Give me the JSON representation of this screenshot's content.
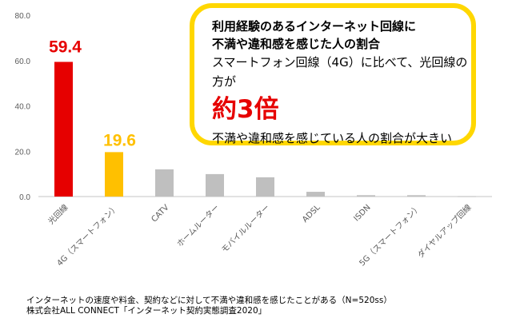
{
  "chart_data": {
    "type": "bar",
    "categories": [
      "光回線",
      "4G（スマートフォン）",
      "CATV",
      "ホームルーター",
      "モバイルルーター",
      "ADSL",
      "ISDN",
      "5G（スマートフォン）",
      "ダイヤルアップ回線"
    ],
    "values": [
      59.4,
      19.6,
      12.0,
      9.9,
      8.5,
      2.1,
      0.6,
      0.6,
      0.1
    ],
    "data_labels": [
      "59.4",
      "19.6",
      "",
      "",
      "",
      "",
      "",
      "",
      ""
    ],
    "colors": [
      "#e60000",
      "#ffc000",
      "#bfbfbf",
      "#bfbfbf",
      "#bfbfbf",
      "#bfbfbf",
      "#bfbfbf",
      "#bfbfbf",
      "#bfbfbf"
    ],
    "yticks": [
      "0.0",
      "20.0",
      "40.0",
      "60.0",
      "80.0"
    ],
    "ylim": [
      0,
      80
    ],
    "grid": false,
    "title": "",
    "xlabel": "",
    "ylabel": ""
  },
  "callout": {
    "line1": "利用経験のあるインターネット回線に",
    "line2": "不満や違和感を感じた人の割合",
    "line3": "スマートフォン回線（4G）に比べて、光回線の方が",
    "big": "約3倍",
    "line4": "不満や違和感を感じている人の割合が大きい",
    "border_color": "#ffd700"
  },
  "footnote": {
    "line1": "インターネットの速度や料金、契約などに対して不満や違和感を感じたことがある（N=520ss）",
    "line2": "株式会社ALL CONNECT「インターネット契約実態調査2020」"
  }
}
